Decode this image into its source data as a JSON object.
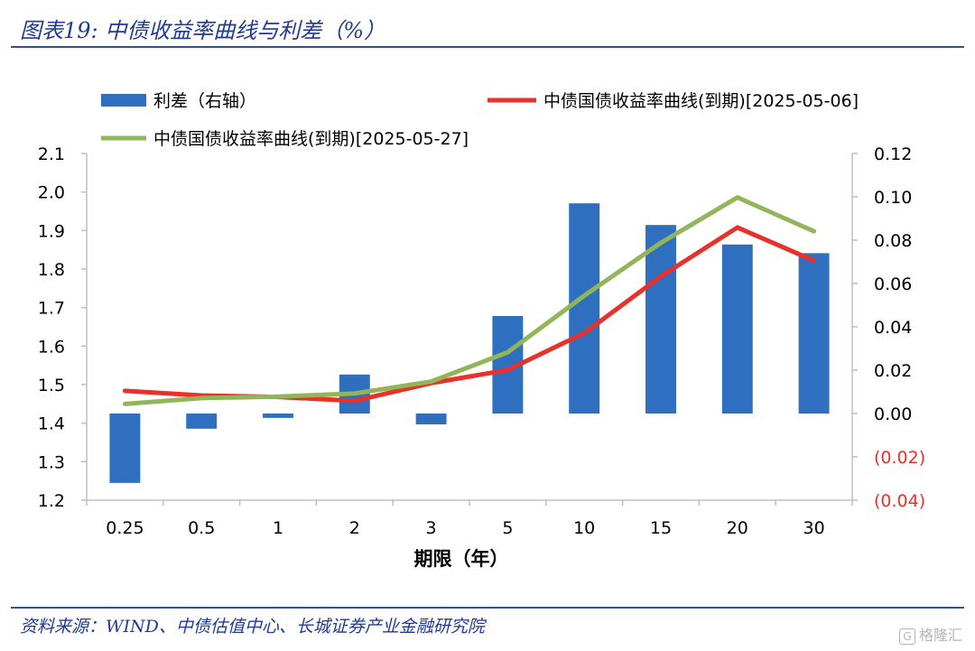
{
  "header": {
    "title": "图表19:  中债收益率曲线与利差（%）"
  },
  "footer": {
    "source": "资料来源：WIND、中债估值中心、长城证券产业金融研究院",
    "watermark_icon": "gelonghui-logo-icon",
    "watermark_text": "格隆汇"
  },
  "colors": {
    "bar": "#2e6fbf",
    "line_0506": "#e8312a",
    "line_0527": "#92b55a",
    "negative_tick": "#e8312a",
    "header": "#1f3a93"
  },
  "chart_data": {
    "type": "bar+line",
    "categories": [
      "0.25",
      "0.5",
      "1",
      "2",
      "3",
      "5",
      "10",
      "15",
      "20",
      "30"
    ],
    "xlabel": "期限（年）",
    "left_axis": {
      "ylim": [
        1.2,
        2.1
      ],
      "ticks": [
        "1.2",
        "1.3",
        "1.4",
        "1.5",
        "1.6",
        "1.7",
        "1.8",
        "1.9",
        "2.0",
        "2.1"
      ]
    },
    "right_axis": {
      "ylim": [
        -0.04,
        0.12
      ],
      "ticks": [
        "(0.04)",
        "(0.02)",
        "0.00",
        "0.02",
        "0.04",
        "0.06",
        "0.08",
        "0.10",
        "0.12"
      ]
    },
    "grid": false,
    "legend_position": "top",
    "series": [
      {
        "name": "利差（右轴）",
        "type": "bar",
        "axis": "right",
        "values": [
          -0.032,
          -0.007,
          -0.002,
          0.018,
          -0.005,
          0.045,
          0.097,
          0.087,
          0.078,
          0.074
        ]
      },
      {
        "name": "中债国债收益率曲线(到期)[2025-05-06]",
        "type": "line",
        "axis": "left",
        "values": [
          1.484,
          1.472,
          1.468,
          1.458,
          1.504,
          1.538,
          1.634,
          1.781,
          1.908,
          1.822
        ]
      },
      {
        "name": "中债国债收益率曲线(到期)[2025-05-27]",
        "type": "line",
        "axis": "left",
        "values": [
          1.45,
          1.465,
          1.469,
          1.477,
          1.508,
          1.584,
          1.731,
          1.868,
          1.986,
          1.898
        ]
      }
    ]
  }
}
